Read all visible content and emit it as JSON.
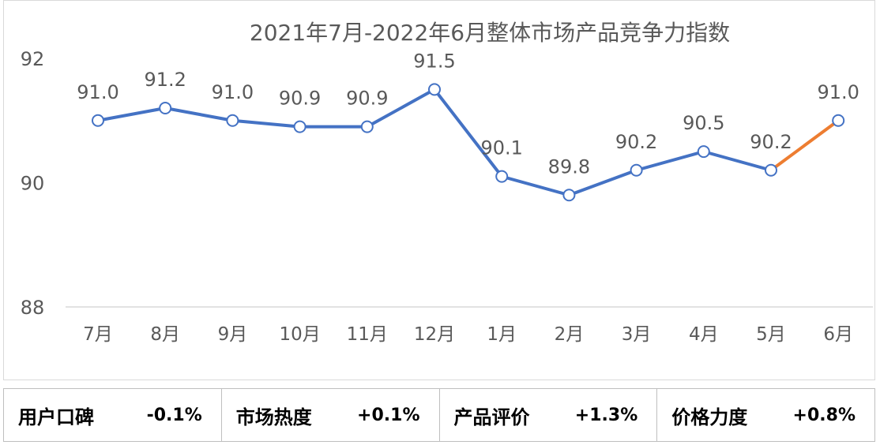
{
  "chart_data": {
    "type": "line",
    "title": "2021年7月-2022年6月整体市场产品竞争力指数",
    "categories": [
      "7月",
      "8月",
      "9月",
      "10月",
      "11月",
      "12月",
      "1月",
      "2月",
      "3月",
      "4月",
      "5月",
      "6月"
    ],
    "values": [
      91.0,
      91.2,
      91.0,
      90.9,
      90.9,
      91.5,
      90.1,
      89.8,
      90.2,
      90.5,
      90.2,
      91.0
    ],
    "data_labels": [
      "91.0",
      "91.2",
      "91.0",
      "90.9",
      "90.9",
      "91.5",
      "90.1",
      "89.8",
      "90.2",
      "90.5",
      "90.2",
      "91.0"
    ],
    "ylim": [
      88,
      92
    ],
    "yticks": [
      "88",
      "90",
      "92"
    ],
    "xlabel": "",
    "ylabel": "",
    "grid": false,
    "colors": {
      "line": "#4472c4",
      "highlight_segment": "#ed7d31",
      "drop_line": "#b4c7e7",
      "axis": "#d9d9d9",
      "text": "#595959",
      "title": "#595959"
    }
  },
  "metrics": [
    {
      "label": "用户口碑",
      "value": "-0.1%"
    },
    {
      "label": "市场热度",
      "value": "+0.1%"
    },
    {
      "label": "产品评价",
      "value": "+1.3%"
    },
    {
      "label": "价格力度",
      "value": "+0.8%"
    }
  ]
}
